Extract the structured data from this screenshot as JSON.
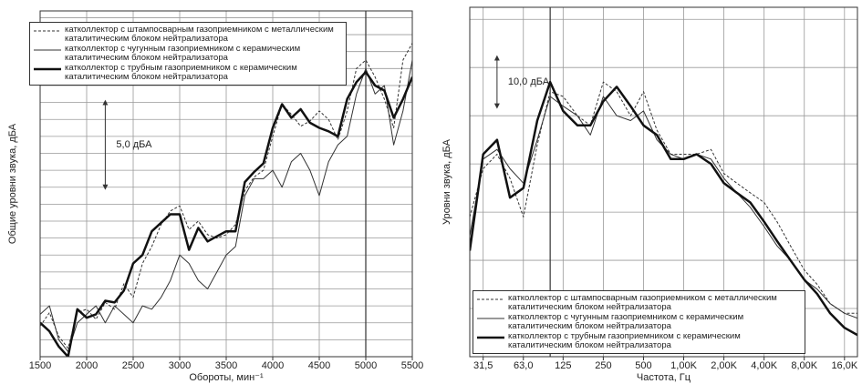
{
  "chart_data": [
    {
      "type": "line",
      "xlabel": "Обороты, мин⁻¹",
      "ylabel": "Общие уровни звука, дБА",
      "x": [
        1500,
        1600,
        1700,
        1800,
        1900,
        2000,
        2100,
        2200,
        2300,
        2400,
        2500,
        2600,
        2700,
        2800,
        2900,
        3000,
        3100,
        3200,
        3300,
        3400,
        3500,
        3600,
        3700,
        3800,
        3900,
        4000,
        4100,
        4200,
        4300,
        4400,
        4500,
        4600,
        4700,
        4800,
        4900,
        5000,
        5100,
        5200,
        5300,
        5400,
        5500
      ],
      "xlim": [
        1500,
        5500
      ],
      "xticks": [
        1500,
        2000,
        2500,
        3000,
        3500,
        4000,
        4500,
        5000,
        5500
      ],
      "ylim": [
        0,
        20.4
      ],
      "yticks": [
        1,
        2,
        3,
        4,
        5,
        6,
        7,
        8,
        9,
        10,
        11,
        12,
        13,
        14,
        15,
        16,
        17,
        18,
        19,
        20
      ],
      "ytick_labels": false,
      "grid": true,
      "vline": 5000,
      "legend": "upper left",
      "annotations": [
        {
          "text": "5,0 дБА",
          "x": 2200,
          "y1": 10,
          "y2": 15
        }
      ],
      "series": [
        {
          "name": "катколлектор с штампосварным газоприемником с металлическим каталитическим блоком нейтрализатора",
          "color": "#333333",
          "dash": "3,2",
          "width": 1,
          "values": [
            1.8,
            2.6,
            1.2,
            0.5,
            2.6,
            2.8,
            2.2,
            3.2,
            2.8,
            4.3,
            3.5,
            5.5,
            6.5,
            7.8,
            8.6,
            8.9,
            7.5,
            8.0,
            7.2,
            7.0,
            7.2,
            7.8,
            9.8,
            10.6,
            11.0,
            13.0,
            14.9,
            14.3,
            13.6,
            13.9,
            14.5,
            14.0,
            12.8,
            14.5,
            17.0,
            17.5,
            16.5,
            15.2,
            13.5,
            17.5,
            18.5
          ]
        },
        {
          "name": "катколлектор с чугунным газоприемником с керамическим каталитическим блоком нейтрализатора",
          "color": "#333333",
          "dash": "none",
          "width": 1,
          "values": [
            2.5,
            3.0,
            1.0,
            0.3,
            2.0,
            2.5,
            3.0,
            2.0,
            3.0,
            2.5,
            2.0,
            3.0,
            2.8,
            3.5,
            4.5,
            6.0,
            5.5,
            4.5,
            4.0,
            5.0,
            6.0,
            6.5,
            9.5,
            10.5,
            10.5,
            11.0,
            10.0,
            11.5,
            12.0,
            11.0,
            9.5,
            11.5,
            12.5,
            13.0,
            15.5,
            17.0,
            15.5,
            16.0,
            12.5,
            14.5,
            17.5
          ]
        },
        {
          "name": "катколлектор с трубным газоприемником с керамическим каталитическим блоком нейтрализатора",
          "color": "#111111",
          "dash": "none",
          "width": 2.5,
          "values": [
            2.0,
            1.5,
            0.6,
            0,
            2.8,
            2.3,
            2.5,
            3.3,
            3.2,
            3.9,
            5.5,
            6.0,
            7.4,
            7.9,
            8.4,
            8.4,
            6.3,
            7.6,
            6.8,
            7.1,
            7.4,
            7.4,
            10.3,
            10.9,
            11.4,
            13.5,
            14.9,
            14.1,
            14.6,
            13.8,
            13.5,
            13.3,
            13.0,
            15.2,
            16.2,
            16.8,
            16.0,
            15.7,
            14.1,
            15.2,
            16.5
          ]
        }
      ]
    },
    {
      "type": "line",
      "xlabel": "Частота, Гц",
      "ylabel": "Уровни звука, дБА",
      "xscale": "log",
      "x": [
        25,
        31.5,
        40,
        50,
        63,
        80,
        100,
        125,
        160,
        200,
        250,
        315,
        400,
        500,
        630,
        800,
        1000,
        1250,
        1600,
        2000,
        2500,
        3150,
        4000,
        5000,
        6300,
        8000,
        10000,
        12500,
        16000,
        20000
      ],
      "xlim": [
        25,
        20000
      ],
      "xticks": [
        {
          "value": 31.5,
          "label": "31,5"
        },
        {
          "value": 63,
          "label": "63,0"
        },
        125,
        250,
        500,
        {
          "value": 1000,
          "label": "1,00K"
        },
        {
          "value": 2000,
          "label": "2,00K"
        },
        {
          "value": 4000,
          "label": "4,00K"
        },
        {
          "value": 8000,
          "label": "8,00K"
        },
        {
          "value": 16000,
          "label": "16,0K"
        }
      ],
      "ylim": [
        0,
        72.5
      ],
      "yticks": [
        10,
        20,
        30,
        40,
        50,
        60,
        70
      ],
      "ytick_labels": false,
      "grid": true,
      "vline": 100,
      "legend": "lower left",
      "annotations": [
        {
          "text": "10,0 дБА",
          "x": 40,
          "y1": 52,
          "y2": 62
        }
      ],
      "series": [
        {
          "name": "катколлектор с штампосварным газоприемником с металлическим каталитическим блоком нейтрализатора",
          "color": "#333333",
          "dash": "3,2",
          "width": 1,
          "values": [
            29,
            39,
            42,
            37,
            29,
            44,
            55,
            54,
            50,
            48,
            57,
            55,
            50,
            55,
            47,
            42,
            42,
            42,
            43,
            38,
            36,
            34,
            32,
            28,
            23,
            18,
            15,
            11,
            9,
            9
          ]
        },
        {
          "name": "катколлектор с чугунным газоприемником с керамическим каталитическим блоком нейтрализатора",
          "color": "#333333",
          "dash": "none",
          "width": 1,
          "values": [
            25,
            41,
            43,
            39,
            36,
            45,
            54,
            52,
            50,
            46,
            54,
            50,
            49,
            51,
            45,
            42,
            41,
            42,
            41,
            37,
            34,
            31,
            27,
            23,
            20,
            16,
            14,
            11,
            9,
            8
          ]
        },
        {
          "name": "катколлектор с трубным газоприемником с керамическим каталитическим блоком нейтрализатора",
          "color": "#111111",
          "dash": "none",
          "width": 2.5,
          "values": [
            22,
            42,
            45,
            33,
            35,
            49,
            57,
            51,
            48,
            48,
            53,
            56,
            52,
            48,
            46,
            41,
            41,
            42,
            40,
            36,
            34,
            32,
            28,
            24,
            20,
            16,
            13,
            9,
            6,
            4.5
          ]
        }
      ]
    }
  ]
}
